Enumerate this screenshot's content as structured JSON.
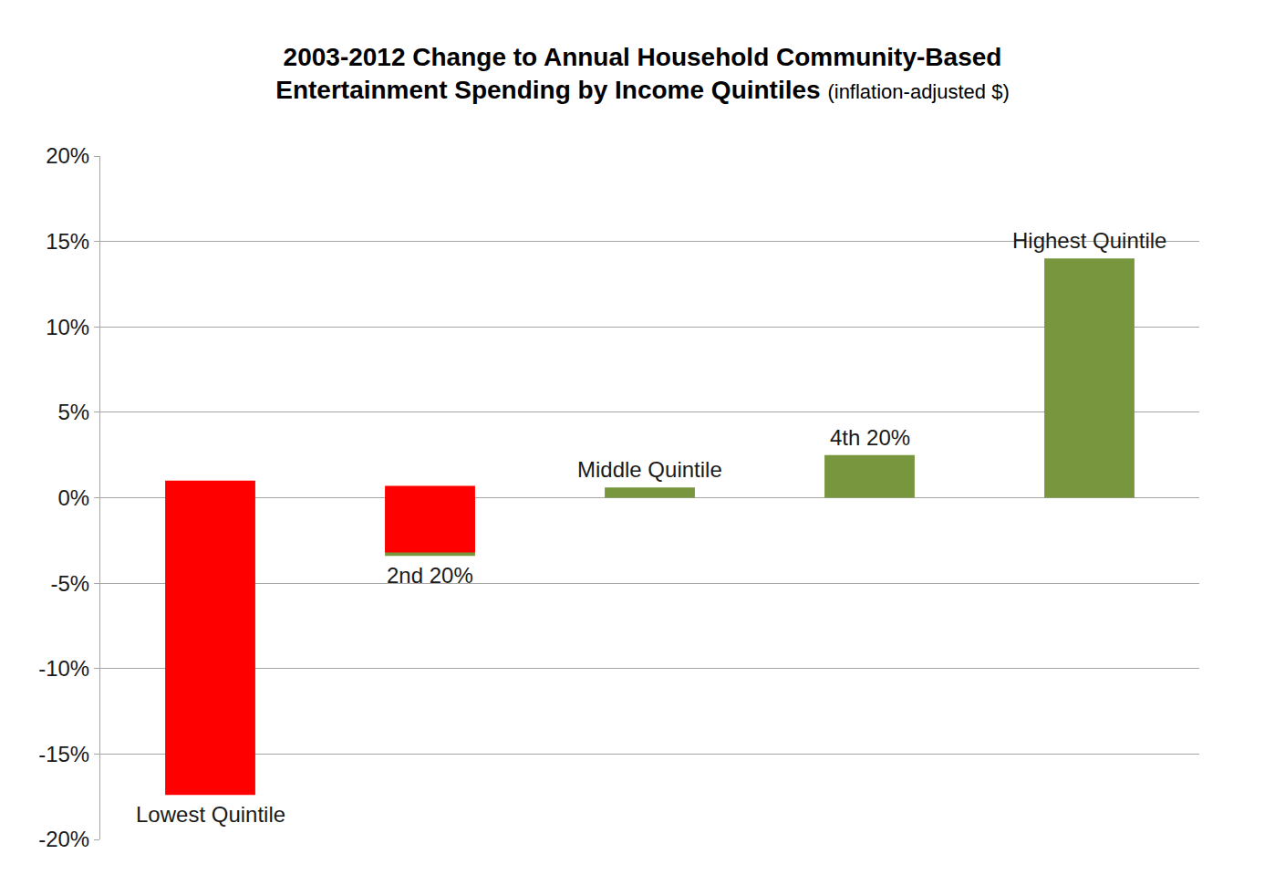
{
  "chart_data": {
    "type": "bar",
    "title": "2003-2012 Change to Annual Household Community-Based Entertainment Spending by Income Quintiles",
    "subtitle": "(inflation-adjusted $)",
    "categories": [
      "Lowest Quintile",
      "2nd 20%",
      "Middle Quintile",
      "4th 20%",
      "Highest Quintile"
    ],
    "series": [
      {
        "color": "#77963e",
        "values": [
          null,
          -3.4,
          0.6,
          2.5,
          14.0
        ]
      },
      {
        "color": "#ff0000",
        "values": [
          -18.4,
          -3.9,
          null,
          null,
          null
        ],
        "base": [
          1.0,
          0.7,
          null,
          null,
          null
        ]
      }
    ],
    "ylim": [
      -20,
      20
    ],
    "yticks": [
      {
        "value": -20,
        "label": "-20%"
      },
      {
        "value": -15,
        "label": "-15%"
      },
      {
        "value": -10,
        "label": "-10%"
      },
      {
        "value": -5,
        "label": "-5%"
      },
      {
        "value": 0,
        "label": "0%"
      },
      {
        "value": 5,
        "label": "5%"
      },
      {
        "value": 10,
        "label": "10%"
      },
      {
        "value": 15,
        "label": "15%"
      },
      {
        "value": 20,
        "label": "20%"
      }
    ],
    "grid": true,
    "tick_labels": "y"
  }
}
